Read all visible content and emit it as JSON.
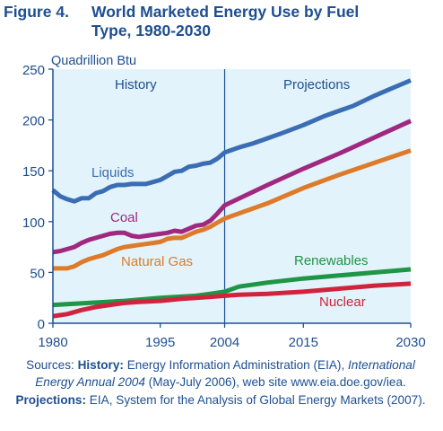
{
  "title": {
    "number": "Figure 4.",
    "line1": "World Marketed Energy Use by Fuel",
    "line2": "Type, 1980-2030"
  },
  "chart_data": {
    "type": "line",
    "ylabel": "Quadrillion Btu",
    "ylim": [
      0,
      250
    ],
    "yticks": [
      0,
      50,
      100,
      150,
      200,
      250
    ],
    "xlim": [
      1980,
      2030
    ],
    "xticks": [
      1980,
      1995,
      2004,
      2015,
      2030
    ],
    "divider_year": 2004,
    "region_labels": {
      "history": "History",
      "projections": "Projections"
    },
    "grid": false,
    "background_color": "#e3f3fb",
    "series": [
      {
        "name": "Liquids",
        "color": "#3a6db3",
        "x": [
          1980,
          1981,
          1982,
          1983,
          1984,
          1985,
          1986,
          1987,
          1988,
          1989,
          1990,
          1991,
          1992,
          1993,
          1994,
          1995,
          1996,
          1997,
          1998,
          1999,
          2000,
          2001,
          2002,
          2003,
          2004,
          2006,
          2008,
          2010,
          2012,
          2015,
          2018,
          2020,
          2022,
          2025,
          2027,
          2030
        ],
        "y": [
          131,
          125,
          122,
          120,
          123,
          123,
          128,
          130,
          134,
          136,
          136,
          137,
          137,
          137,
          139,
          141,
          145,
          149,
          150,
          154,
          155,
          157,
          158,
          162,
          168,
          173,
          177,
          182,
          187,
          195,
          204,
          209,
          214,
          224,
          230,
          239
        ]
      },
      {
        "name": "Coal",
        "color": "#a0287f",
        "x": [
          1980,
          1981,
          1982,
          1983,
          1984,
          1985,
          1986,
          1987,
          1988,
          1989,
          1990,
          1991,
          1992,
          1993,
          1994,
          1995,
          1996,
          1997,
          1998,
          1999,
          2000,
          2001,
          2002,
          2003,
          2004,
          2010,
          2015,
          2020,
          2025,
          2030
        ],
        "y": [
          70,
          71,
          73,
          75,
          79,
          82,
          84,
          86,
          88,
          89,
          89,
          86,
          85,
          86,
          87,
          88,
          89,
          91,
          90,
          93,
          96,
          97,
          101,
          108,
          116,
          136,
          152,
          167,
          183,
          199
        ]
      },
      {
        "name": "Natural Gas",
        "color": "#dd7b2a",
        "x": [
          1980,
          1981,
          1982,
          1983,
          1984,
          1985,
          1986,
          1987,
          1988,
          1989,
          1990,
          1991,
          1992,
          1993,
          1994,
          1995,
          1996,
          1997,
          1998,
          1999,
          2000,
          2001,
          2002,
          2003,
          2004,
          2010,
          2015,
          2020,
          2025,
          2030
        ],
        "y": [
          54,
          54,
          54,
          56,
          60,
          63,
          65,
          67,
          70,
          73,
          75,
          76,
          77,
          78,
          79,
          80,
          83,
          84,
          84,
          87,
          90,
          92,
          95,
          99,
          103,
          118,
          133,
          146,
          158,
          170
        ]
      },
      {
        "name": "Renewables",
        "color": "#1e9646",
        "x": [
          1980,
          1985,
          1990,
          1995,
          2000,
          2002,
          2004,
          2006,
          2010,
          2015,
          2020,
          2025,
          2030
        ],
        "y": [
          18,
          20,
          22,
          25,
          27,
          29,
          31,
          36,
          40,
          44,
          47,
          50,
          53
        ]
      },
      {
        "name": "Nuclear",
        "color": "#d1233e",
        "x": [
          1980,
          1982,
          1984,
          1986,
          1988,
          1990,
          1992,
          1995,
          1998,
          2000,
          2002,
          2004,
          2006,
          2010,
          2015,
          2020,
          2025,
          2030
        ],
        "y": [
          7,
          9,
          13,
          16,
          18,
          20,
          21,
          22,
          24,
          25,
          26,
          27,
          28,
          29,
          31,
          34,
          37,
          39
        ]
      }
    ]
  },
  "source": {
    "p1": "Sources: ",
    "b1": "History:",
    "p2": " Energy Information Administration (EIA),",
    "i1": "International Energy Annual 2004",
    "p3": " (May-July 2006), web site www.eia.doe.gov/iea. ",
    "b2": "Projections:",
    "p4": " EIA, System for the Analysis of Global Energy Markets (2007)."
  }
}
